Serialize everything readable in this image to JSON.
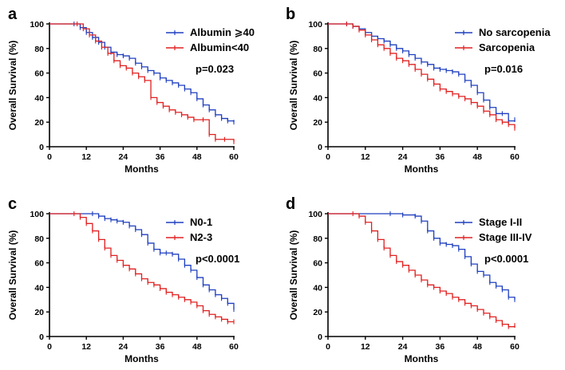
{
  "chart_data": [
    {
      "type": "line",
      "panel": "a",
      "xlabel": "Months",
      "ylabel": "Overall Survival (%)",
      "xlim": [
        0,
        60
      ],
      "ylim": [
        0,
        100
      ],
      "xticks": [
        0,
        12,
        24,
        36,
        48,
        60
      ],
      "yticks": [
        0,
        20,
        40,
        60,
        80,
        100
      ],
      "pvalue": "p=0.023",
      "legend_position": "top-right",
      "series": [
        {
          "name": "Albumin ⩾40",
          "color": "#1f3fbf",
          "x": [
            0,
            8,
            10,
            12,
            14,
            16,
            18,
            20,
            22,
            24,
            26,
            28,
            30,
            32,
            34,
            36,
            38,
            40,
            42,
            44,
            46,
            48,
            50,
            52,
            54,
            56,
            58,
            60
          ],
          "y": [
            100,
            100,
            97,
            93,
            89,
            85,
            81,
            77,
            75,
            74,
            72,
            68,
            65,
            62,
            60,
            56,
            54,
            52,
            50,
            47,
            44,
            39,
            34,
            30,
            26,
            23,
            21,
            20
          ]
        },
        {
          "name": "Albumin<40",
          "color": "#e02020",
          "x": [
            0,
            9,
            11,
            13,
            15,
            17,
            19,
            21,
            23,
            25,
            27,
            29,
            31,
            33,
            35,
            37,
            39,
            41,
            43,
            45,
            47,
            50,
            52,
            54,
            57,
            60
          ],
          "y": [
            100,
            100,
            96,
            91,
            86,
            81,
            76,
            70,
            66,
            64,
            60,
            57,
            54,
            40,
            36,
            33,
            30,
            28,
            26,
            24,
            22,
            22,
            10,
            6,
            6,
            4
          ]
        }
      ]
    },
    {
      "type": "line",
      "panel": "b",
      "xlabel": "Months",
      "ylabel": "Overall Survival (%)",
      "xlim": [
        0,
        60
      ],
      "ylim": [
        0,
        100
      ],
      "xticks": [
        0,
        12,
        24,
        36,
        48,
        60
      ],
      "yticks": [
        0,
        20,
        40,
        60,
        80,
        100
      ],
      "pvalue": "p=0.016",
      "legend_position": "top-right",
      "series": [
        {
          "name": "No sarcopenia",
          "color": "#1f3fbf",
          "x": [
            0,
            6,
            8,
            10,
            12,
            14,
            16,
            18,
            20,
            22,
            24,
            26,
            28,
            30,
            32,
            34,
            36,
            38,
            40,
            42,
            44,
            46,
            48,
            50,
            52,
            54,
            56,
            58,
            60
          ],
          "y": [
            100,
            100,
            98,
            96,
            93,
            90,
            88,
            86,
            83,
            80,
            78,
            75,
            72,
            69,
            67,
            64,
            63,
            62,
            61,
            59,
            54,
            50,
            44,
            38,
            32,
            27,
            27,
            21,
            22
          ]
        },
        {
          "name": "Sarcopenia",
          "color": "#e02020",
          "x": [
            0,
            6,
            8,
            10,
            12,
            14,
            16,
            18,
            20,
            22,
            24,
            26,
            28,
            30,
            32,
            34,
            36,
            38,
            40,
            42,
            44,
            46,
            48,
            50,
            52,
            54,
            56,
            58,
            60
          ],
          "y": [
            100,
            100,
            98,
            95,
            91,
            87,
            83,
            80,
            76,
            72,
            70,
            67,
            63,
            59,
            55,
            51,
            47,
            45,
            43,
            41,
            39,
            36,
            33,
            29,
            26,
            22,
            20,
            18,
            15
          ]
        }
      ]
    },
    {
      "type": "line",
      "panel": "c",
      "xlabel": "Months",
      "ylabel": "Overall Survival (%)",
      "xlim": [
        0,
        60
      ],
      "ylim": [
        0,
        100
      ],
      "xticks": [
        0,
        12,
        24,
        36,
        48,
        60
      ],
      "yticks": [
        0,
        20,
        40,
        60,
        80,
        100
      ],
      "pvalue": "p<0.0001",
      "legend_position": "top-right",
      "series": [
        {
          "name": "N0-1",
          "color": "#1f3fbf",
          "x": [
            0,
            14,
            16,
            18,
            20,
            22,
            24,
            26,
            28,
            30,
            32,
            34,
            36,
            38,
            40,
            42,
            44,
            46,
            48,
            50,
            52,
            54,
            56,
            58,
            60
          ],
          "y": [
            100,
            100,
            98,
            96,
            95,
            94,
            93,
            90,
            87,
            83,
            76,
            71,
            68,
            68,
            67,
            63,
            58,
            54,
            48,
            42,
            38,
            34,
            31,
            27,
            22
          ]
        },
        {
          "name": "N2-3",
          "color": "#e02020",
          "x": [
            0,
            8,
            10,
            12,
            14,
            16,
            18,
            20,
            22,
            24,
            26,
            28,
            30,
            32,
            34,
            36,
            38,
            40,
            42,
            44,
            46,
            48,
            50,
            52,
            54,
            56,
            58,
            60
          ],
          "y": [
            100,
            100,
            97,
            92,
            86,
            79,
            72,
            66,
            62,
            58,
            55,
            51,
            47,
            44,
            42,
            39,
            36,
            34,
            32,
            30,
            28,
            25,
            21,
            18,
            16,
            14,
            12,
            12
          ]
        }
      ]
    },
    {
      "type": "line",
      "panel": "d",
      "xlabel": "Months",
      "ylabel": "Overall Survival (%)",
      "xlim": [
        0,
        60
      ],
      "ylim": [
        0,
        100
      ],
      "xticks": [
        0,
        12,
        24,
        36,
        48,
        60
      ],
      "yticks": [
        0,
        20,
        40,
        60,
        80,
        100
      ],
      "pvalue": "p<0.0001",
      "legend_position": "top-right",
      "series": [
        {
          "name": "Stage I-II",
          "color": "#1f3fbf",
          "x": [
            0,
            20,
            24,
            28,
            30,
            32,
            34,
            36,
            38,
            40,
            42,
            44,
            46,
            48,
            50,
            52,
            54,
            56,
            58,
            60
          ],
          "y": [
            100,
            100,
            99,
            98,
            94,
            86,
            80,
            76,
            75,
            74,
            71,
            65,
            59,
            53,
            50,
            44,
            41,
            38,
            32,
            30
          ]
        },
        {
          "name": "Stage III-IV",
          "color": "#e02020",
          "x": [
            0,
            8,
            10,
            12,
            14,
            16,
            18,
            20,
            22,
            24,
            26,
            28,
            30,
            32,
            34,
            36,
            38,
            40,
            42,
            44,
            46,
            48,
            50,
            52,
            54,
            56,
            58,
            60
          ],
          "y": [
            100,
            100,
            98,
            93,
            86,
            79,
            72,
            66,
            61,
            58,
            54,
            50,
            46,
            42,
            40,
            37,
            35,
            32,
            30,
            27,
            25,
            22,
            19,
            16,
            13,
            10,
            8,
            9
          ]
        }
      ]
    }
  ]
}
